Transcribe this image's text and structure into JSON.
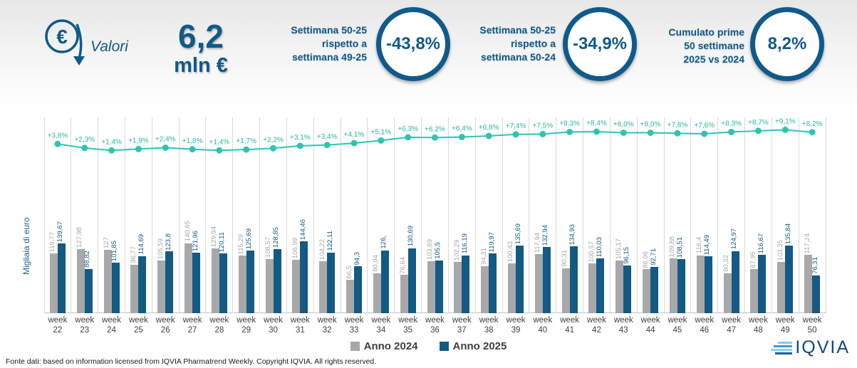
{
  "header": {
    "valori_label": "Valori",
    "total_value": "6,2",
    "total_unit": "mln €",
    "kpis": [
      {
        "line1": "Settimana 50-25",
        "line2": "rispetto a",
        "line3": "settimana 49-25",
        "value": "-43,8%"
      },
      {
        "line1": "Settimana 50-25",
        "line2": "rispetto a",
        "line3": "settimana 50-24",
        "value": "-34,9%"
      },
      {
        "line1": "Cumulato prime",
        "line2": "50 settimane",
        "line3": "2025 vs 2024",
        "value": "8,2%"
      }
    ]
  },
  "chart_data": {
    "type": "bar",
    "ylabel": "Migliaia di euro",
    "category_prefix": "week",
    "categories": [
      "22",
      "23",
      "24",
      "25",
      "26",
      "27",
      "28",
      "29",
      "30",
      "31",
      "32",
      "33",
      "34",
      "35",
      "36",
      "37",
      "38",
      "39",
      "40",
      "41",
      "42",
      "43",
      "44",
      "45",
      "46",
      "47",
      "48",
      "49",
      "50"
    ],
    "series": [
      {
        "name": "Anno 2024",
        "color": "#a8a8a8",
        "label_color": "#a8a8a8",
        "values": [
          119.77,
          127.98,
          127,
          96.77,
          105.59,
          140.65,
          129.94,
          115.29,
          108.57,
          106.99,
          104.22,
          66.5,
          80.04,
          76.64,
          103.69,
          102.29,
          94.31,
          100.43,
          117.94,
          90.31,
          100.57,
          105.17,
          88.06,
          109.88,
          116.4,
          80.32,
          87.95,
          103.35,
          117.24
        ],
        "labels": [
          "119,77",
          "127,98",
          "127",
          "96,77",
          "105,59",
          "140,65",
          "129,94",
          "115,29",
          "108,57",
          "106,99",
          "104,22",
          "66,5",
          "80,04",
          "76,64",
          "103,69",
          "102,29",
          "94,31",
          "100,43",
          "117,94",
          "90,31",
          "100,57",
          "105,17",
          "88,06",
          "109,88",
          "116,4",
          "80,32",
          "87,95",
          "103,35",
          "117,24"
        ]
      },
      {
        "name": "Anno 2025",
        "color": "#135a85",
        "label_color": "#135a85",
        "values": [
          139.67,
          88.82,
          101.85,
          114.69,
          123.8,
          121.96,
          120.11,
          125.69,
          128.85,
          144.46,
          122.11,
          94.3,
          126,
          130.69,
          105.5,
          116.19,
          119.97,
          135.69,
          132.94,
          134.93,
          110.03,
          96.15,
          92.71,
          108.51,
          114.49,
          124.97,
          116.67,
          135.84,
          76.31
        ],
        "labels": [
          "139,67",
          "88,82",
          "101,85",
          "114,69",
          "123,8",
          "121,96",
          "120,11",
          "125,69",
          "128,85",
          "144,46",
          "122,11",
          "94,3",
          "126,",
          "130,69",
          "105,5",
          "116,19",
          "119,97",
          "135,69",
          "132,94",
          "134,93",
          "110,03",
          "96,15",
          "92,71",
          "108,51",
          "114,49",
          "124,97",
          "116,67",
          "135,84",
          "76,31"
        ]
      }
    ],
    "line_series": {
      "name": "Variazione % cumulata",
      "color": "#2ec4b2",
      "values": [
        3.8,
        2.3,
        1.4,
        1.9,
        2.4,
        1.8,
        1.4,
        1.7,
        2.2,
        3.1,
        3.4,
        4.1,
        5.1,
        6.3,
        6.2,
        6.4,
        6.8,
        7.4,
        7.5,
        8.3,
        8.4,
        8.0,
        8.0,
        7.8,
        7.6,
        8.3,
        8.7,
        9.1,
        8.2
      ],
      "labels": [
        "+3,8%",
        "+2,3%",
        "+1,4%",
        "+1,9%",
        "+2,4%",
        "+1,8%",
        "+1,4%",
        "+1,7%",
        "+2,2%",
        "+3,1%",
        "+3,4%",
        "+4,1%",
        "+5,1%",
        "+6,3%",
        "+6,2%",
        "+6,4%",
        "+6,8%",
        "+7,4%",
        "+7,5%",
        "+8,3%",
        "+8,4%",
        "+8,0%",
        "+8,0%",
        "+7,8%",
        "+7,6%",
        "+8,3%",
        "+8,7%",
        "+9,1%",
        "+8,2%"
      ]
    },
    "ylim": [
      0,
      160
    ],
    "grid": "vertical"
  },
  "legend": {
    "items": [
      {
        "label": "Anno 2024",
        "color": "#a8a8a8"
      },
      {
        "label": "Anno 2025",
        "color": "#135a85"
      }
    ]
  },
  "footer": {
    "source": "Fonte dati: based on information licensed from IQVIA Pharmatrend Weekly. Copyright IQVIA. All rights reserved.",
    "logo_text": "IQVIA"
  },
  "colors": {
    "accent_blue": "#0f5a8a",
    "teal_line": "#2ec4b2",
    "gray_bar": "#a8a8a8",
    "blue_bar": "#135a85"
  }
}
